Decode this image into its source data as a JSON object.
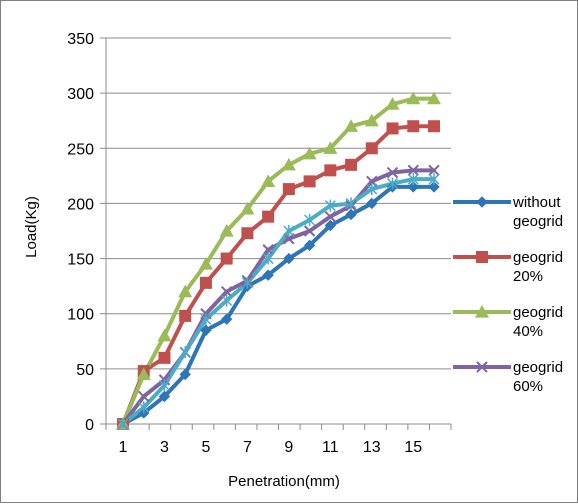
{
  "chart_data": {
    "type": "line",
    "title": "",
    "xlabel": "Penetration(mm)",
    "ylabel": "Load(Kg)",
    "x": [
      1,
      2,
      3,
      4,
      5,
      6,
      7,
      8,
      9,
      10,
      11,
      12,
      13,
      14,
      15,
      16
    ],
    "x_tick_labels": [
      "1",
      "3",
      "5",
      "7",
      "9",
      "11",
      "13",
      "15"
    ],
    "y_tick_labels": [
      "0",
      "50",
      "100",
      "150",
      "200",
      "250",
      "300",
      "350"
    ],
    "ylim": [
      0,
      350
    ],
    "grid": "horizontal",
    "legend_position": "right",
    "series": [
      {
        "name": "without geogrid",
        "name_lines": [
          "without",
          "geogrid"
        ],
        "color": "#2e75b6",
        "marker": "diamond",
        "values": [
          0,
          10,
          25,
          45,
          85,
          95,
          125,
          135,
          150,
          162,
          180,
          190,
          200,
          215,
          215,
          215
        ]
      },
      {
        "name": "geogrid 20%",
        "name_lines": [
          "geogrid",
          "20%"
        ],
        "color": "#c0504d",
        "marker": "square",
        "values": [
          0,
          48,
          60,
          98,
          128,
          150,
          173,
          188,
          213,
          220,
          230,
          235,
          250,
          268,
          270,
          270
        ]
      },
      {
        "name": "geogrid 40%",
        "name_lines": [
          "geogrid",
          "40%"
        ],
        "color": "#9bbb59",
        "marker": "triangle",
        "values": [
          0,
          45,
          80,
          120,
          145,
          175,
          195,
          220,
          235,
          245,
          250,
          270,
          275,
          290,
          295,
          295
        ]
      },
      {
        "name": "geogrid 60%",
        "name_lines": [
          "geogrid",
          "60%"
        ],
        "color": "#8064a2",
        "marker": "x",
        "values": [
          0,
          25,
          40,
          65,
          100,
          120,
          130,
          158,
          168,
          175,
          188,
          198,
          220,
          228,
          230,
          230
        ]
      },
      {
        "name": "",
        "name_lines": [],
        "color": "#4bacc6",
        "marker": "star",
        "values": [
          0,
          15,
          35,
          65,
          95,
          112,
          128,
          150,
          175,
          185,
          198,
          200,
          213,
          218,
          222,
          222
        ]
      }
    ]
  }
}
